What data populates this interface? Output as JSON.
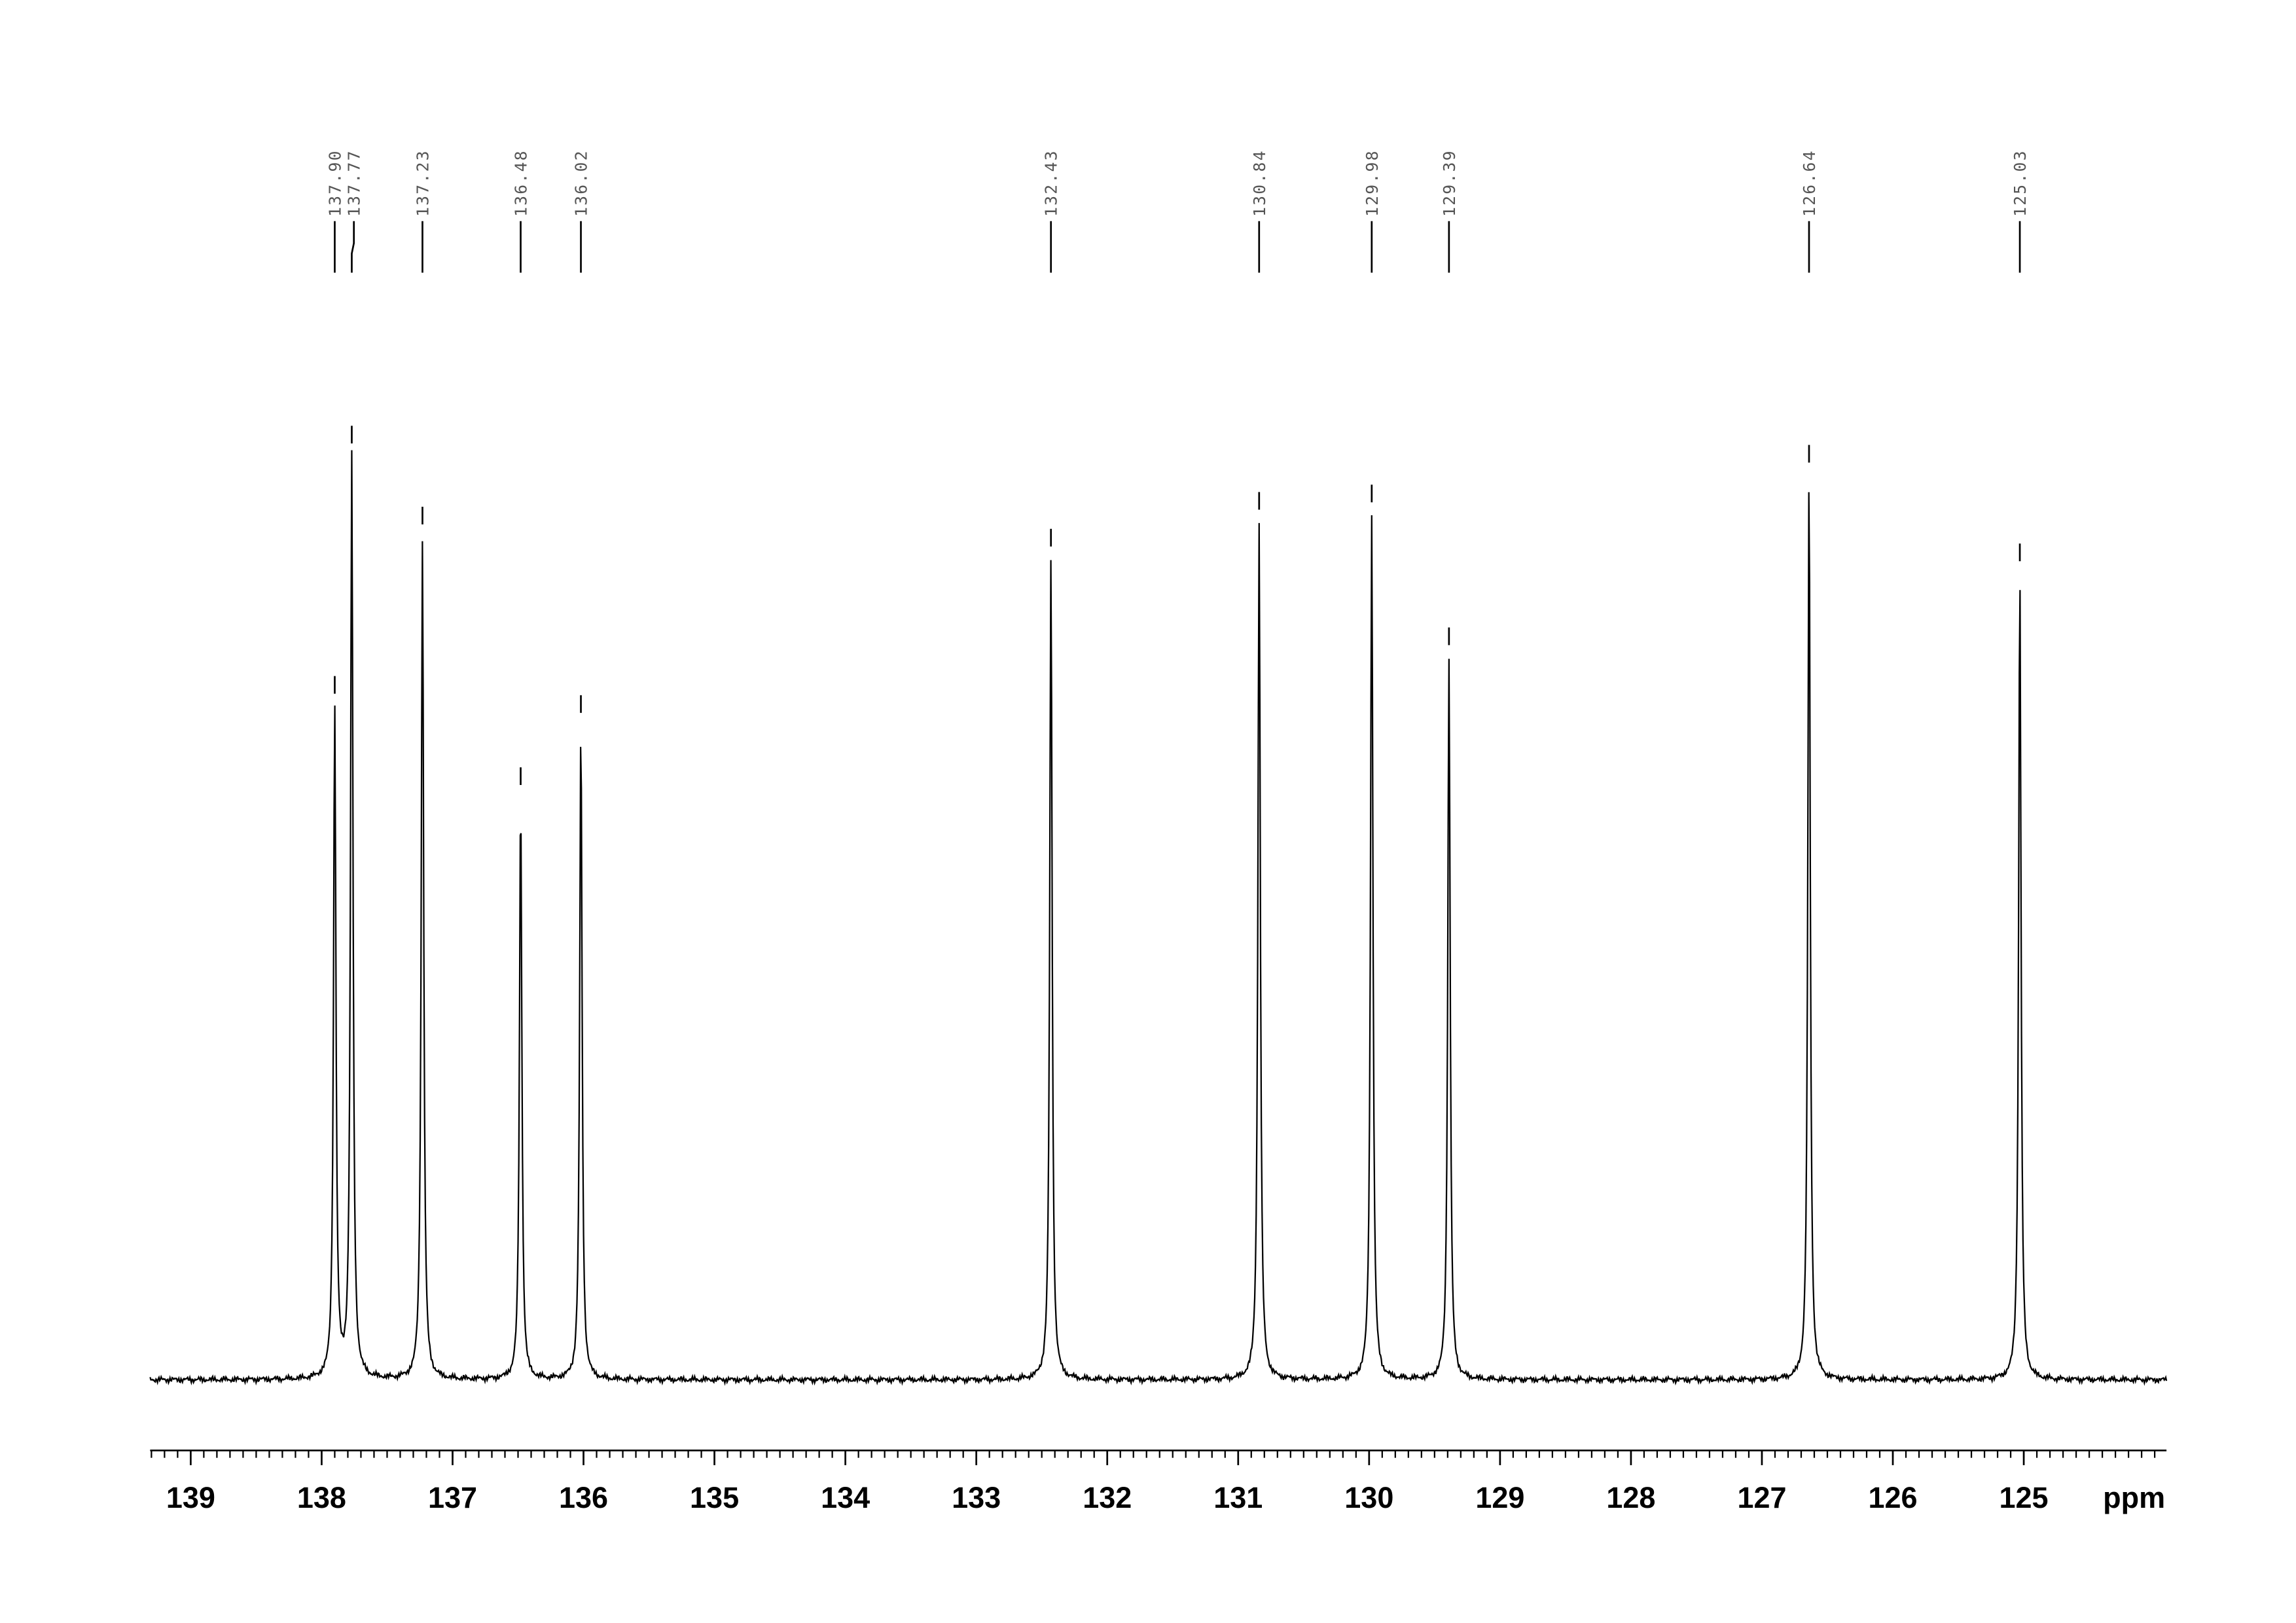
{
  "chart_data": {
    "type": "spectrum",
    "x": [
      137.9,
      137.77,
      137.23,
      136.48,
      136.02,
      132.43,
      130.84,
      129.98,
      129.39,
      126.64,
      125.03
    ],
    "x_labels": [
      "137.90",
      "137.77",
      "137.23",
      "136.48",
      "136.02",
      "132.43",
      "130.84",
      "129.98",
      "129.39",
      "126.64",
      "125.03"
    ],
    "values": [
      457,
      627,
      572,
      395,
      444,
      557,
      582,
      587,
      490,
      614,
      547
    ],
    "color": "#000000",
    "xlim": [
      139.31,
      123.91
    ],
    "xticks": [
      139,
      138,
      137,
      136,
      135,
      134,
      133,
      132,
      131,
      130,
      129,
      128,
      127,
      126,
      125
    ],
    "minor_tick_step": 0.1,
    "ylim": [
      0,
      700
    ],
    "xlabel": "ppm"
  }
}
